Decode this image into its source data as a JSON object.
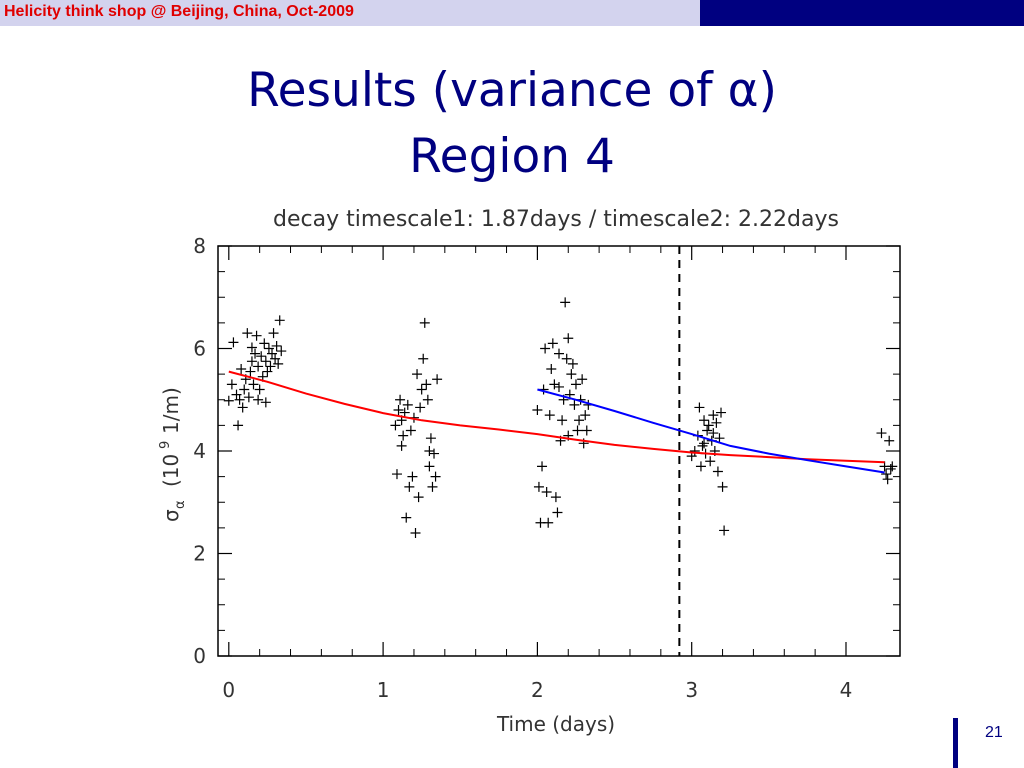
{
  "header": {
    "text": "Helicity think shop @ Beijing, China,  Oct-2009"
  },
  "slide": {
    "title_line1": "Results (variance of α)",
    "title_line2": "Region 4",
    "page_number": "21"
  },
  "colors": {
    "header_bar_dark": "#000080",
    "header_bar_light": "#d3d3ee",
    "header_text": "#e00000",
    "title": "#000080",
    "fit1": "#ff0000",
    "fit2": "#0000ff"
  },
  "chart_data": {
    "type": "scatter",
    "title": "decay timescale1: 1.87days / timescale2: 2.22days",
    "xlabel": "Time (days)",
    "ylabel_main": "σ",
    "ylabel_sub": "α",
    "ylabel_rest": "(10",
    "ylabel_exp": "9",
    "ylabel_units": "1/m)",
    "xlim": [
      -0.07,
      4.35
    ],
    "ylim": [
      0,
      8
    ],
    "x_ticks": [
      0,
      1,
      2,
      3,
      4
    ],
    "y_ticks": [
      0,
      2,
      4,
      6,
      8
    ],
    "x_tick_labels": [
      "0",
      "1",
      "2",
      "3",
      "4"
    ],
    "y_tick_labels": [
      "0",
      "2",
      "4",
      "6",
      "8"
    ],
    "vline_x": 2.92,
    "series": [
      {
        "marker": "+",
        "points": [
          [
            0.0,
            4.98
          ],
          [
            0.02,
            5.3
          ],
          [
            0.03,
            6.12
          ],
          [
            0.05,
            5.1
          ],
          [
            0.06,
            4.5
          ],
          [
            0.07,
            5.0
          ],
          [
            0.08,
            5.6
          ],
          [
            0.09,
            4.85
          ],
          [
            0.1,
            5.2
          ],
          [
            0.11,
            5.4
          ],
          [
            0.12,
            6.3
          ],
          [
            0.13,
            5.05
          ],
          [
            0.14,
            5.55
          ],
          [
            0.15,
            5.75
          ],
          [
            0.15,
            6.02
          ],
          [
            0.16,
            5.3
          ],
          [
            0.17,
            5.9
          ],
          [
            0.18,
            6.25
          ],
          [
            0.19,
            5.65
          ],
          [
            0.2,
            5.2
          ],
          [
            0.21,
            5.85
          ],
          [
            0.22,
            5.45
          ],
          [
            0.23,
            6.1
          ],
          [
            0.24,
            5.75
          ],
          [
            0.25,
            5.55
          ],
          [
            0.26,
            6.0
          ],
          [
            0.27,
            5.65
          ],
          [
            0.28,
            5.9
          ],
          [
            0.29,
            6.3
          ],
          [
            0.3,
            5.8
          ],
          [
            0.31,
            6.05
          ],
          [
            0.32,
            5.7
          ],
          [
            0.33,
            6.55
          ],
          [
            0.34,
            5.95
          ],
          [
            0.24,
            4.95
          ],
          [
            0.19,
            5.0
          ],
          [
            1.08,
            4.5
          ],
          [
            1.09,
            3.55
          ],
          [
            1.1,
            4.8
          ],
          [
            1.11,
            5.0
          ],
          [
            1.12,
            4.6
          ],
          [
            1.13,
            4.3
          ],
          [
            1.14,
            4.75
          ],
          [
            1.15,
            2.7
          ],
          [
            1.16,
            4.9
          ],
          [
            1.17,
            3.3
          ],
          [
            1.18,
            4.4
          ],
          [
            1.19,
            3.5
          ],
          [
            1.2,
            4.65
          ],
          [
            1.21,
            2.4
          ],
          [
            1.22,
            5.5
          ],
          [
            1.23,
            3.1
          ],
          [
            1.24,
            4.85
          ],
          [
            1.25,
            5.2
          ],
          [
            1.26,
            5.8
          ],
          [
            1.27,
            6.5
          ],
          [
            1.28,
            5.3
          ],
          [
            1.29,
            5.0
          ],
          [
            1.3,
            3.7
          ],
          [
            1.31,
            4.25
          ],
          [
            1.32,
            3.3
          ],
          [
            1.33,
            3.95
          ],
          [
            1.34,
            3.5
          ],
          [
            1.35,
            5.4
          ],
          [
            1.3,
            4.0
          ],
          [
            1.12,
            4.1
          ],
          [
            2.0,
            4.8
          ],
          [
            2.01,
            3.3
          ],
          [
            2.02,
            2.6
          ],
          [
            2.03,
            3.7
          ],
          [
            2.04,
            5.2
          ],
          [
            2.05,
            6.0
          ],
          [
            2.06,
            3.2
          ],
          [
            2.07,
            2.6
          ],
          [
            2.08,
            4.7
          ],
          [
            2.09,
            5.6
          ],
          [
            2.1,
            6.1
          ],
          [
            2.11,
            5.3
          ],
          [
            2.12,
            3.1
          ],
          [
            2.13,
            2.8
          ],
          [
            2.14,
            5.9
          ],
          [
            2.15,
            4.2
          ],
          [
            2.16,
            4.6
          ],
          [
            2.17,
            5.0
          ],
          [
            2.18,
            6.9
          ],
          [
            2.19,
            5.8
          ],
          [
            2.2,
            6.2
          ],
          [
            2.21,
            5.1
          ],
          [
            2.22,
            5.5
          ],
          [
            2.23,
            5.7
          ],
          [
            2.24,
            4.9
          ],
          [
            2.25,
            5.3
          ],
          [
            2.26,
            4.4
          ],
          [
            2.27,
            4.6
          ],
          [
            2.28,
            5.0
          ],
          [
            2.29,
            5.4
          ],
          [
            2.3,
            4.15
          ],
          [
            2.31,
            4.7
          ],
          [
            2.32,
            4.4
          ],
          [
            2.33,
            4.9
          ],
          [
            2.2,
            4.3
          ],
          [
            2.14,
            5.25
          ],
          [
            3.0,
            3.9
          ],
          [
            3.02,
            4.0
          ],
          [
            3.04,
            4.3
          ],
          [
            3.05,
            4.85
          ],
          [
            3.06,
            3.7
          ],
          [
            3.07,
            4.1
          ],
          [
            3.08,
            4.6
          ],
          [
            3.09,
            3.95
          ],
          [
            3.1,
            4.4
          ],
          [
            3.11,
            4.5
          ],
          [
            3.12,
            3.8
          ],
          [
            3.13,
            4.2
          ],
          [
            3.14,
            4.7
          ],
          [
            3.15,
            4.0
          ],
          [
            3.16,
            4.55
          ],
          [
            3.17,
            3.6
          ],
          [
            3.18,
            4.25
          ],
          [
            3.19,
            4.75
          ],
          [
            3.2,
            3.3
          ],
          [
            3.21,
            2.45
          ],
          [
            3.08,
            4.15
          ],
          [
            3.14,
            4.35
          ],
          [
            4.23,
            4.35
          ],
          [
            4.25,
            3.7
          ],
          [
            4.26,
            3.55
          ],
          [
            4.27,
            3.45
          ],
          [
            4.28,
            4.2
          ],
          [
            4.29,
            3.65
          ],
          [
            4.3,
            3.7
          ]
        ]
      },
      {
        "type": "line",
        "color": "#ff0000",
        "points": [
          [
            0.0,
            5.55
          ],
          [
            0.25,
            5.35
          ],
          [
            0.5,
            5.12
          ],
          [
            0.75,
            4.92
          ],
          [
            1.0,
            4.74
          ],
          [
            1.25,
            4.6
          ],
          [
            1.5,
            4.5
          ],
          [
            1.75,
            4.42
          ],
          [
            2.0,
            4.33
          ],
          [
            2.25,
            4.22
          ],
          [
            2.5,
            4.12
          ],
          [
            2.75,
            4.04
          ],
          [
            3.0,
            3.97
          ],
          [
            3.25,
            3.92
          ],
          [
            3.5,
            3.88
          ],
          [
            3.75,
            3.84
          ],
          [
            4.0,
            3.81
          ],
          [
            4.25,
            3.78
          ]
        ]
      },
      {
        "type": "line",
        "color": "#0000ff",
        "points": [
          [
            2.0,
            5.2
          ],
          [
            2.25,
            5.0
          ],
          [
            2.5,
            4.78
          ],
          [
            2.75,
            4.55
          ],
          [
            3.0,
            4.33
          ],
          [
            3.25,
            4.1
          ],
          [
            3.5,
            3.95
          ],
          [
            3.75,
            3.82
          ],
          [
            4.0,
            3.7
          ],
          [
            4.25,
            3.58
          ]
        ]
      }
    ]
  }
}
